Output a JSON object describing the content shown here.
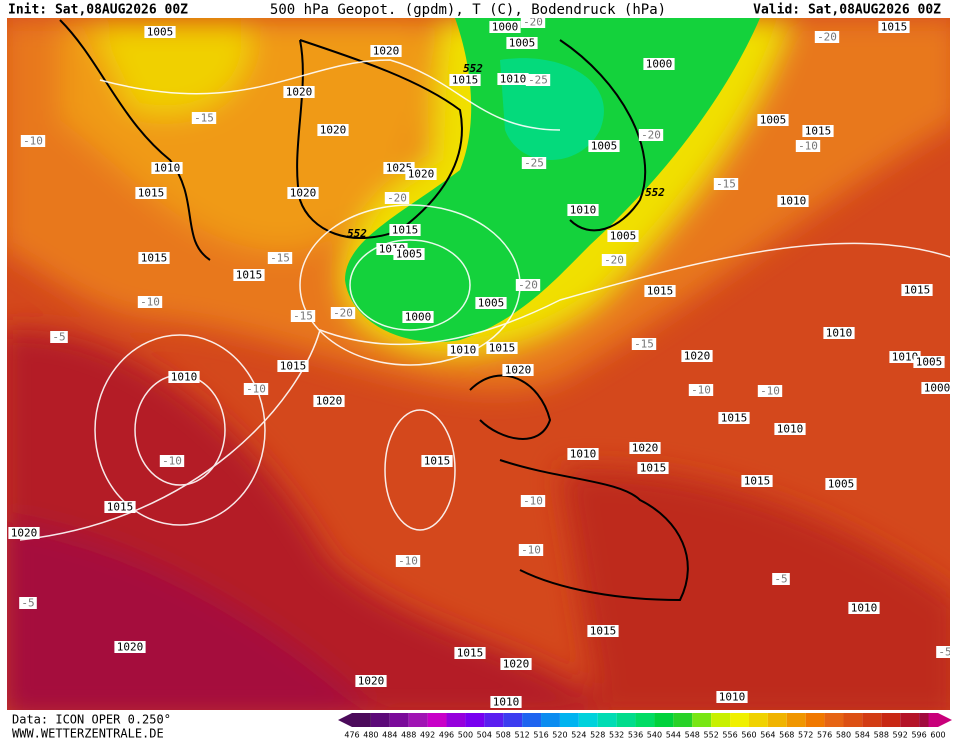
{
  "header": {
    "init": "Init: Sat,08AUG2026 00Z",
    "title": "500 hPa Geopot. (gpdm), T (C), Bodendruck (hPa)",
    "valid": "Valid: Sat,08AUG2026 00Z"
  },
  "footer": {
    "data": "Data: ICON OPER 0.250°",
    "site": "WWW.WETTERZENTRALE.DE"
  },
  "isobar_labels": [
    "1005",
    "1020",
    "1000",
    "1005",
    "1015",
    "1010",
    "1000",
    "1020",
    "1020",
    "1005",
    "1015",
    "1005",
    "1010",
    "1025",
    "1020",
    "1015",
    "1020",
    "1010",
    "1010",
    "1015",
    "1005",
    "1010",
    "1005",
    "1015",
    "1015",
    "1015",
    "1005",
    "1015",
    "1000",
    "1010",
    "1010",
    "1015",
    "1020",
    "1010",
    "1005",
    "1020",
    "1010",
    "1015",
    "1000",
    "1020",
    "1015",
    "1010",
    "1020",
    "1010",
    "1015",
    "1015",
    "1015",
    "1005",
    "1015",
    "1020",
    "1010",
    "1015",
    "1020",
    "1015",
    "1020",
    "1020",
    "1010",
    "1010",
    "1015"
  ],
  "temperature_labels": [
    "-20",
    "-25",
    "-20",
    "-15",
    "-10",
    "-20",
    "-10",
    "-25",
    "-15",
    "-20",
    "-15",
    "-20",
    "-10",
    "-15",
    "-20",
    "-20",
    "-5",
    "-15",
    "-10",
    "-10",
    "-10",
    "-10",
    "-10",
    "-10",
    "-10",
    "-5",
    "-5",
    "-5"
  ],
  "height_labels": [
    "552",
    "552",
    "552"
  ],
  "colorbar": {
    "labels": [
      "476",
      "480",
      "484",
      "488",
      "492",
      "496",
      "500",
      "504",
      "508",
      "512",
      "516",
      "520",
      "524",
      "528",
      "532",
      "536",
      "540",
      "544",
      "548",
      "552",
      "556",
      "560",
      "564",
      "568",
      "572",
      "576",
      "580",
      "584",
      "588",
      "592",
      "596",
      "600"
    ],
    "colors": [
      "#4b0a5a",
      "#5c0a78",
      "#7a0a9a",
      "#a014b4",
      "#c800c8",
      "#9600dc",
      "#7800f0",
      "#5a1ef0",
      "#3c3cf0",
      "#1e64f0",
      "#0a8cf0",
      "#00b4f0",
      "#00d2dc",
      "#00dcb4",
      "#00dc8c",
      "#00dc64",
      "#00d23c",
      "#28d228",
      "#78e614",
      "#c8f000",
      "#f0f000",
      "#f0d200",
      "#f0b400",
      "#f09600",
      "#f07800",
      "#e66414",
      "#dc5014",
      "#d23c14",
      "#c82814",
      "#b41428",
      "#a00a3c",
      "#c8007a"
    ]
  }
}
